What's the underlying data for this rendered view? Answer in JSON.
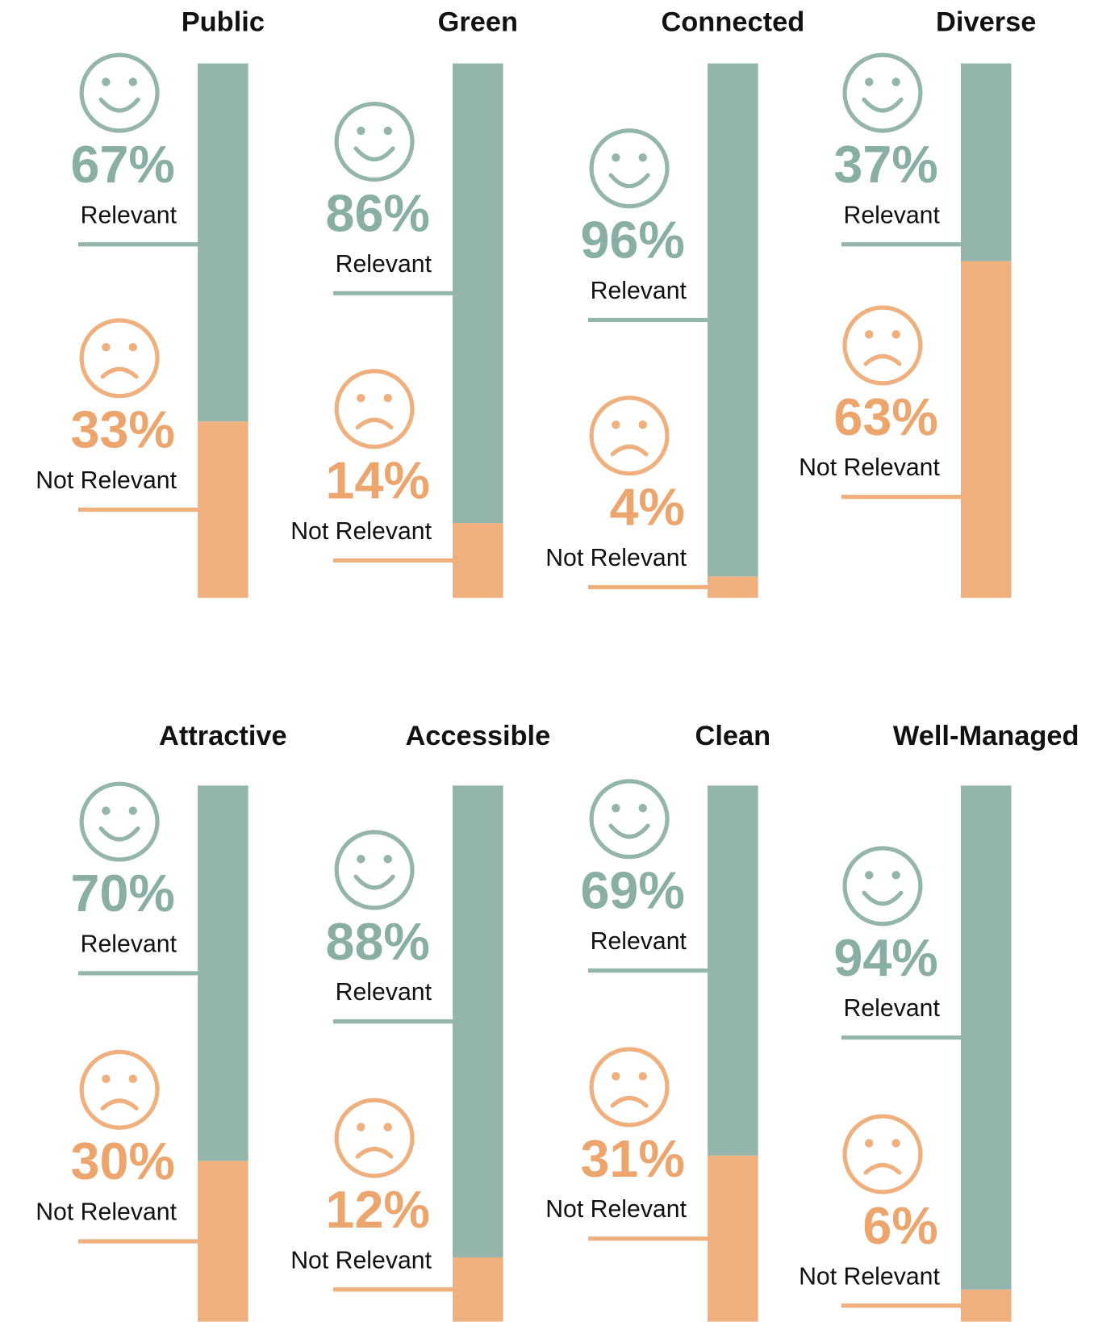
{
  "chart_data": [
    {
      "type": "stacked_bar",
      "title": "Public",
      "ylim": [
        0,
        100
      ],
      "series": [
        {
          "name": "Relevant",
          "color": "#93b5ab",
          "values": [
            67
          ],
          "value_labels": [
            "67%"
          ]
        },
        {
          "name": "Not Relevant",
          "color": "#efb07e",
          "values": [
            33
          ],
          "value_labels": [
            "33%"
          ]
        }
      ]
    },
    {
      "type": "stacked_bar",
      "title": "Green",
      "ylim": [
        0,
        100
      ],
      "series": [
        {
          "name": "Relevant",
          "color": "#93b5ab",
          "values": [
            86
          ],
          "value_labels": [
            "86%"
          ]
        },
        {
          "name": "Not Relevant",
          "color": "#efb07e",
          "values": [
            14
          ],
          "value_labels": [
            "14%"
          ]
        }
      ]
    },
    {
      "type": "stacked_bar",
      "title": "Connected",
      "ylim": [
        0,
        100
      ],
      "series": [
        {
          "name": "Relevant",
          "color": "#93b5ab",
          "values": [
            96
          ],
          "value_labels": [
            "96%"
          ]
        },
        {
          "name": "Not Relevant",
          "color": "#efb07e",
          "values": [
            4
          ],
          "value_labels": [
            "4%"
          ]
        }
      ]
    },
    {
      "type": "stacked_bar",
      "title": "Diverse",
      "ylim": [
        0,
        100
      ],
      "series": [
        {
          "name": "Relevant",
          "color": "#93b5ab",
          "values": [
            37
          ],
          "value_labels": [
            "37%"
          ]
        },
        {
          "name": "Not Relevant",
          "color": "#efb07e",
          "values": [
            63
          ],
          "value_labels": [
            "63%"
          ]
        }
      ]
    },
    {
      "type": "stacked_bar",
      "title": "Attractive",
      "ylim": [
        0,
        100
      ],
      "series": [
        {
          "name": "Relevant",
          "color": "#93b5ab",
          "values": [
            70
          ],
          "value_labels": [
            "70%"
          ]
        },
        {
          "name": "Not Relevant",
          "color": "#efb07e",
          "values": [
            30
          ],
          "value_labels": [
            "30%"
          ]
        }
      ]
    },
    {
      "type": "stacked_bar",
      "title": "Accessible",
      "ylim": [
        0,
        100
      ],
      "series": [
        {
          "name": "Relevant",
          "color": "#93b5ab",
          "values": [
            88
          ],
          "value_labels": [
            "88%"
          ]
        },
        {
          "name": "Not Relevant",
          "color": "#efb07e",
          "values": [
            12
          ],
          "value_labels": [
            "12%"
          ]
        }
      ]
    },
    {
      "type": "stacked_bar",
      "title": "Clean",
      "ylim": [
        0,
        100
      ],
      "series": [
        {
          "name": "Relevant",
          "color": "#93b5ab",
          "values": [
            69
          ],
          "value_labels": [
            "69%"
          ]
        },
        {
          "name": "Not Relevant",
          "color": "#efb07e",
          "values": [
            31
          ],
          "value_labels": [
            "31%"
          ]
        }
      ]
    },
    {
      "type": "stacked_bar",
      "title": "Well-Managed",
      "ylim": [
        0,
        100
      ],
      "series": [
        {
          "name": "Relevant",
          "color": "#93b5ab",
          "values": [
            94
          ],
          "value_labels": [
            "94%"
          ]
        },
        {
          "name": "Not Relevant",
          "color": "#efb07e",
          "values": [
            6
          ],
          "value_labels": [
            "6%"
          ]
        }
      ]
    }
  ]
}
